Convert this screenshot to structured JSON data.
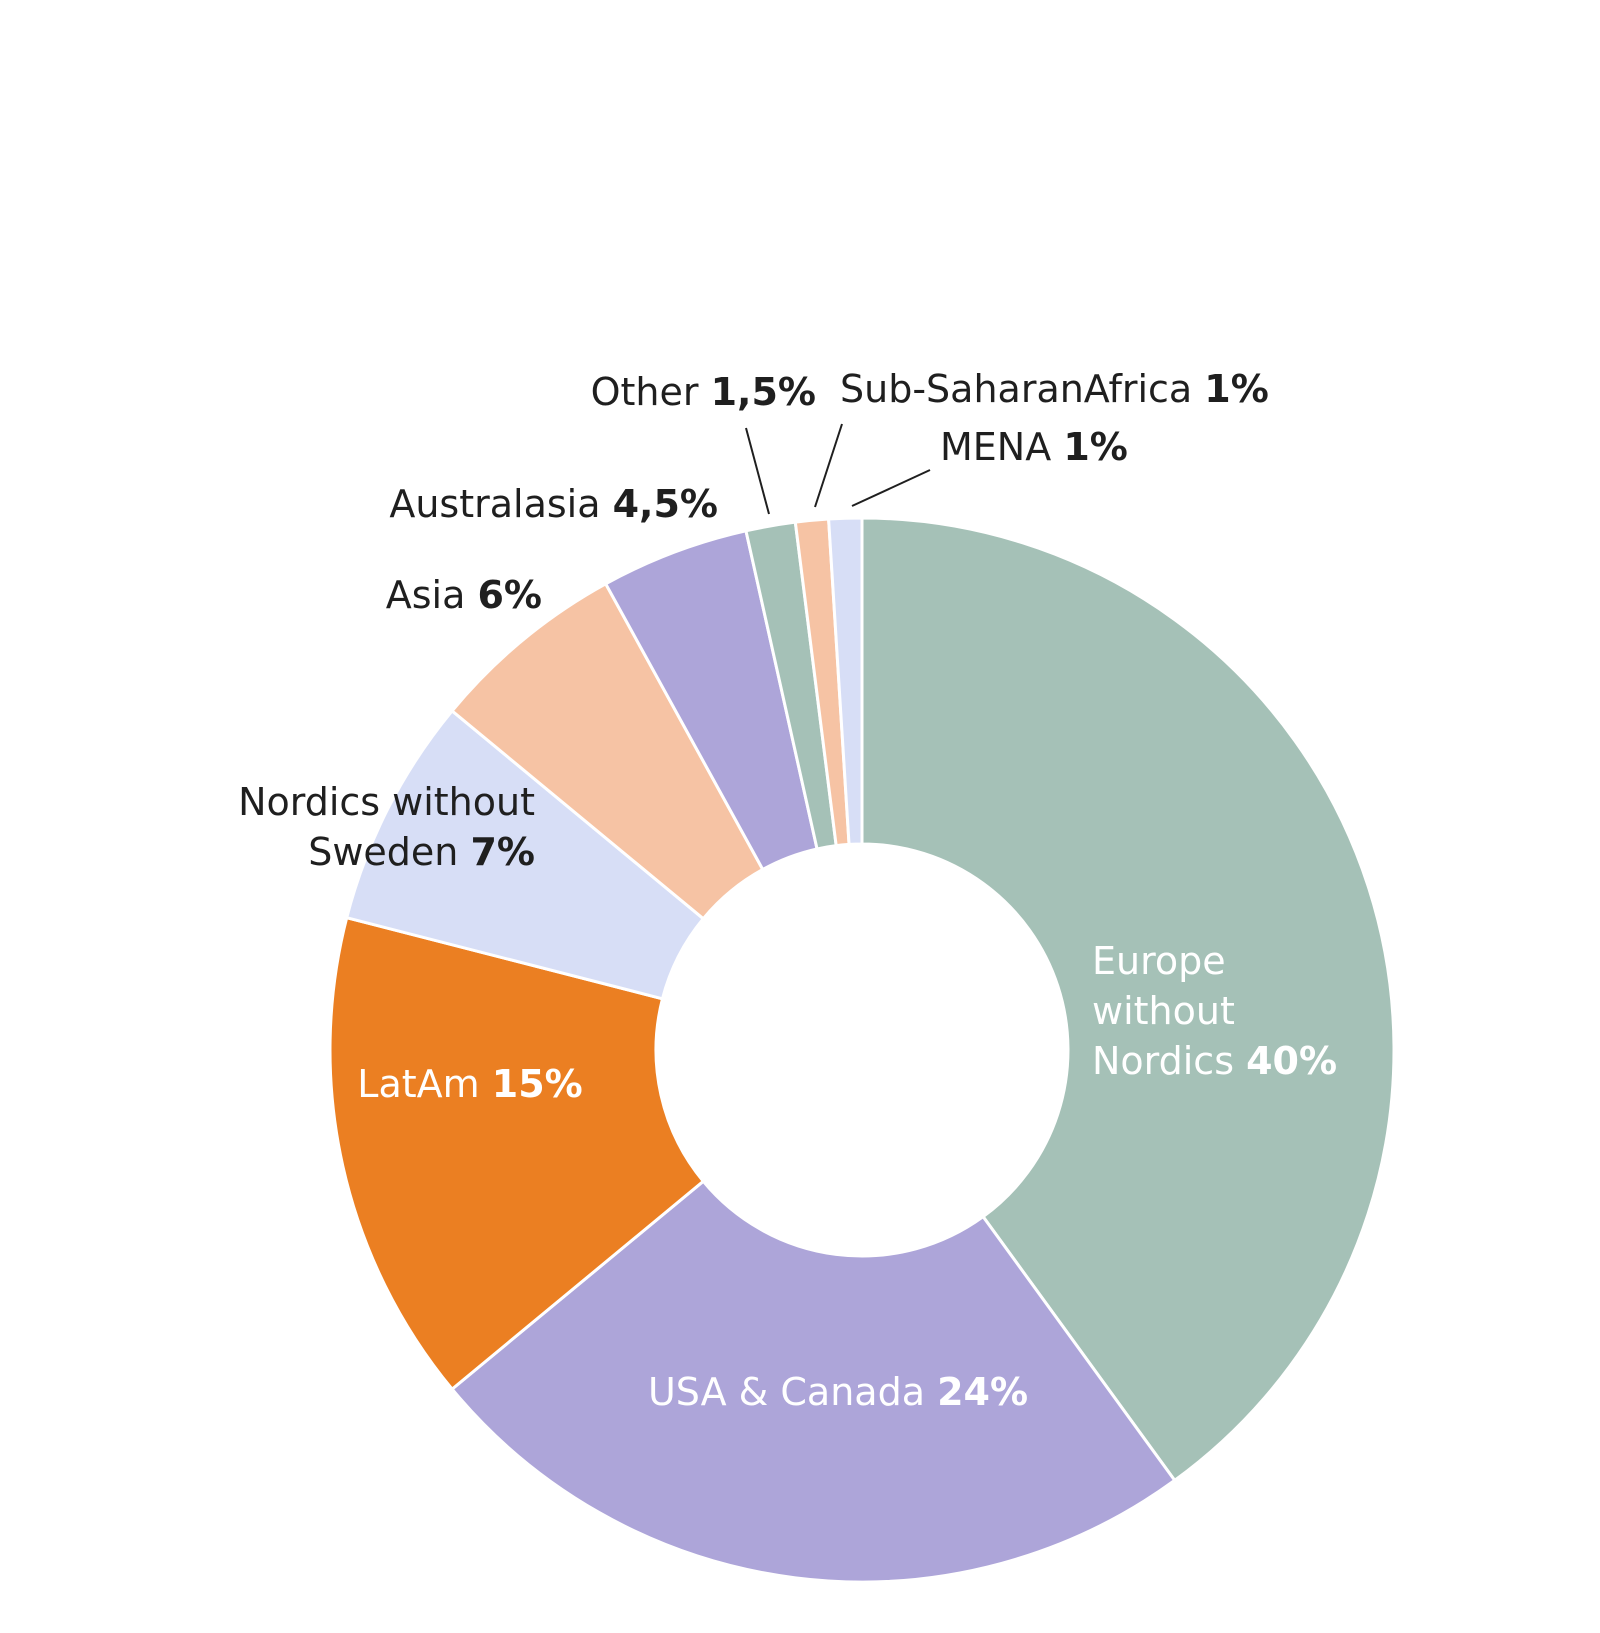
{
  "chart_data": {
    "type": "pie",
    "variant": "donut",
    "title": "",
    "slices": [
      {
        "name": "Europe without Nordics",
        "lines": [
          "Europe",
          "without",
          "Nordics"
        ],
        "value": 40,
        "value_label": "40%",
        "color": "#a5c1b7",
        "label_style": "light"
      },
      {
        "name": "USA & Canada",
        "lines": [
          "USA & Canada"
        ],
        "value": 24,
        "value_label": "24%",
        "color": "#ada5d9",
        "label_style": "light"
      },
      {
        "name": "LatAm",
        "lines": [
          "LatAm"
        ],
        "value": 15,
        "value_label": "15%",
        "color": "#eb7f22",
        "label_style": "light"
      },
      {
        "name": "Nordics without Sweden",
        "lines": [
          "Nordics without",
          "Sweden"
        ],
        "value": 7,
        "value_label": "7%",
        "color": "#d7def6",
        "label_style": "dark"
      },
      {
        "name": "Asia",
        "lines": [
          "Asia"
        ],
        "value": 6,
        "value_label": "6%",
        "color": "#f6c3a4",
        "label_style": "dark"
      },
      {
        "name": "Australasia",
        "lines": [
          "Australasia"
        ],
        "value": 4.5,
        "value_label": "4,5%",
        "color": "#ada5d9",
        "label_style": "dark"
      },
      {
        "name": "Other",
        "lines": [
          "Other"
        ],
        "value": 1.5,
        "value_label": "1,5%",
        "color": "#a5c1b7",
        "label_style": "dark"
      },
      {
        "name": "Sub-SaharanAfrica",
        "lines": [
          "Sub-SaharanAfrica"
        ],
        "value": 1,
        "value_label": "1%",
        "color": "#f6c3a4",
        "label_style": "dark"
      },
      {
        "name": "MENA",
        "lines": [
          "MENA"
        ],
        "value": 1,
        "value_label": "1%",
        "color": "#d7def6",
        "label_style": "dark"
      }
    ],
    "direction": "clockwise",
    "start": "top",
    "legend": "none"
  }
}
